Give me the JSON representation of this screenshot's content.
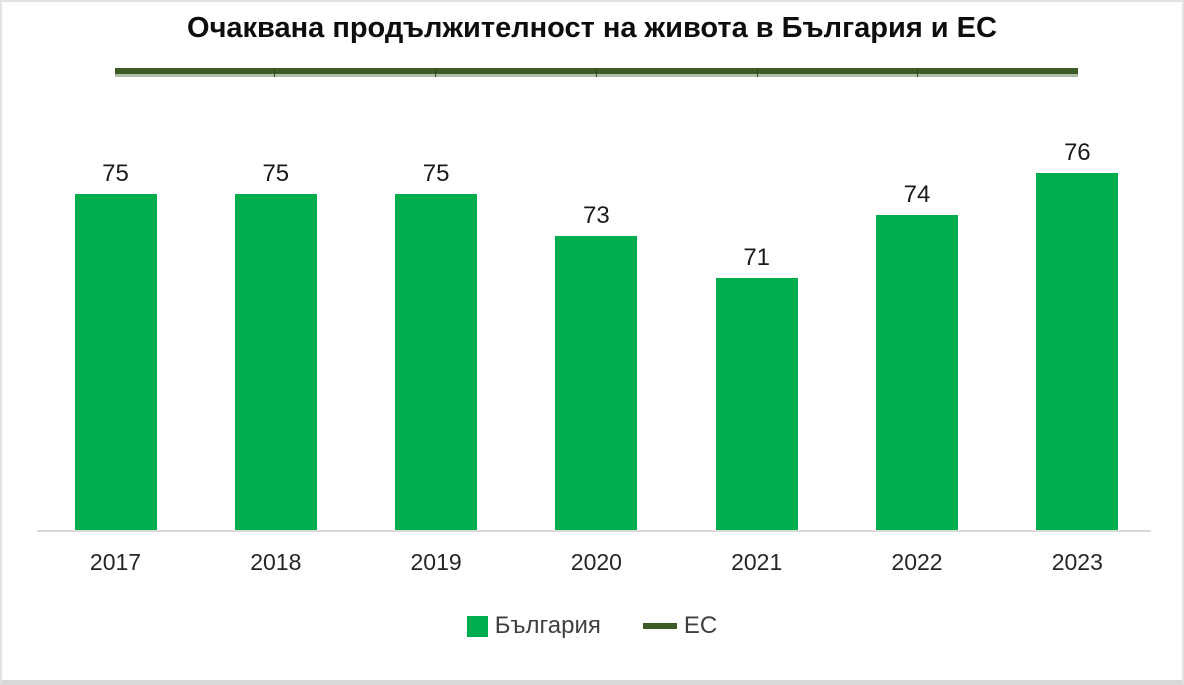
{
  "title": "Очаквана продължителност на живота в България и ЕС",
  "colors": {
    "bar_green": "#00ae4e",
    "ec_dark_green": "#3d5b25",
    "ec_line_underside": "#afbea8",
    "ec_segment_joint": "#2e471c",
    "axis_line": "#d9d9d9",
    "value_label_text": "#1a1a1a",
    "axis_label_text": "#262626",
    "legend_text": "#404040",
    "title_text": "#0d0d0d"
  },
  "legend": {
    "items": [
      {
        "label": "България",
        "swatch": "square",
        "color": "#00ae4e"
      },
      {
        "label": "ЕС",
        "swatch": "line",
        "color": "#3d5b25"
      }
    ]
  },
  "chart_data": {
    "type": "bar",
    "title": "Очаквана продължителност на живота в България и ЕС",
    "categories": [
      "2017",
      "2018",
      "2019",
      "2020",
      "2021",
      "2022",
      "2023"
    ],
    "series": [
      {
        "name": "България",
        "type": "bar",
        "color": "#00ae4e",
        "values": [
          75,
          75,
          75,
          73,
          71,
          74,
          76
        ],
        "data_labels_shown": true
      },
      {
        "name": "ЕС",
        "type": "line",
        "color": "#3d5b25",
        "values": [
          81,
          81,
          81,
          81,
          81,
          81,
          81
        ],
        "data_labels_shown": false
      }
    ],
    "xlabel": "",
    "ylabel": "",
    "value_axis_visible": false,
    "approx_value_axis_min": 59,
    "grid": false,
    "legend_position": "bottom"
  }
}
